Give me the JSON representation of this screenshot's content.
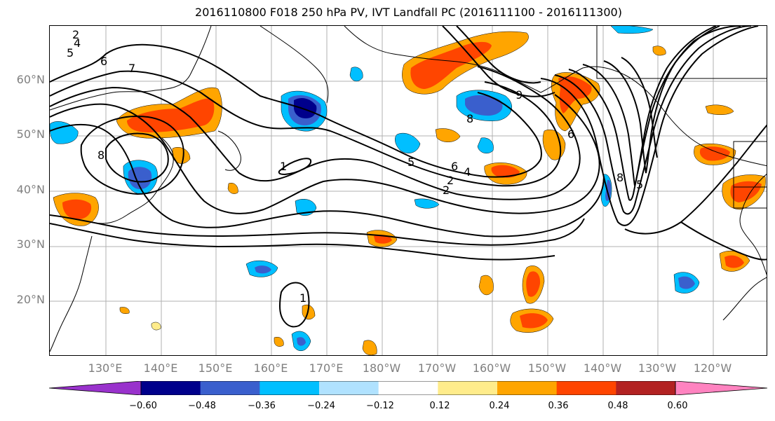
{
  "title": "2016110800 F018 250 hPa PV, IVT Landfall PC (2016111100 - 2016111300)",
  "lat_labels": [
    "60°N",
    "50°N",
    "40°N",
    "30°N",
    "20°N"
  ],
  "lon_labels": [
    "130°E",
    "140°E",
    "150°E",
    "160°E",
    "170°E",
    "180°W",
    "170°W",
    "160°W",
    "150°W",
    "140°W",
    "130°W",
    "120°W"
  ],
  "contour_labels": [
    "2",
    "4",
    "5",
    "6",
    "7",
    "8",
    "1",
    "2",
    "5",
    "6",
    "9",
    "8",
    "6",
    "8",
    "5",
    "1",
    "2",
    "4"
  ],
  "colorbar": {
    "ticks": [
      "−0.60",
      "−0.48",
      "−0.36",
      "−0.24",
      "−0.12",
      "0.12",
      "0.24",
      "0.36",
      "0.48",
      "0.60"
    ],
    "colors": [
      "#9932cc",
      "#00008b",
      "#3a5fcd",
      "#00bfff",
      "#b0e2ff",
      "#ffffff",
      "#ffec8b",
      "#ffa500",
      "#ff4500",
      "#b22222",
      "#ff83c0"
    ]
  }
}
